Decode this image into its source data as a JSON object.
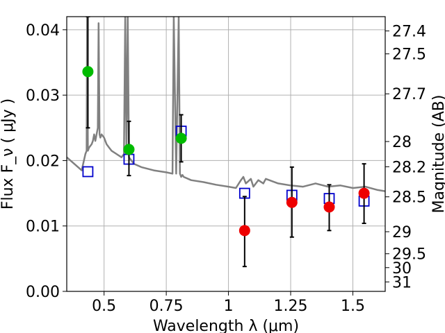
{
  "chart_data": {
    "type": "scatter",
    "xlabel": "Wavelength  λ (μm)",
    "ylabel": "Flux  F_ν  ( μJy )",
    "ylabel_right": "Magnitude (AB)",
    "xlim": [
      0.35,
      1.63
    ],
    "ylim": [
      0.0,
      0.042
    ],
    "grid": true,
    "x_ticks": [
      {
        "value": 0.5,
        "label": "0.5"
      },
      {
        "value": 0.75,
        "label": "0.75"
      },
      {
        "value": 1.0,
        "label": "1"
      },
      {
        "value": 1.25,
        "label": "1.25"
      },
      {
        "value": 1.5,
        "label": "1.5"
      }
    ],
    "y_ticks": [
      {
        "value": 0.0,
        "label": "0.00"
      },
      {
        "value": 0.01,
        "label": "0.01"
      },
      {
        "value": 0.02,
        "label": "0.02"
      },
      {
        "value": 0.03,
        "label": "0.03"
      },
      {
        "value": 0.04,
        "label": "0.04"
      }
    ],
    "mag_ticks": [
      {
        "value": 27.4,
        "label": "27.4"
      },
      {
        "value": 27.5,
        "label": "27.5"
      },
      {
        "value": 27.7,
        "label": "27.7"
      },
      {
        "value": 28.0,
        "label": "28"
      },
      {
        "value": 28.2,
        "label": "28.2"
      },
      {
        "value": 28.5,
        "label": "28.5"
      },
      {
        "value": 29.0,
        "label": "29"
      },
      {
        "value": 29.5,
        "label": "29.5"
      },
      {
        "value": 30.0,
        "label": "30"
      },
      {
        "value": 31.0,
        "label": "31"
      }
    ],
    "series": [
      {
        "kind": "line",
        "color": "#808080",
        "x": [
          0.35,
          0.38,
          0.41,
          0.425,
          0.43,
          0.432,
          0.435,
          0.44,
          0.45,
          0.455,
          0.46,
          0.465,
          0.47,
          0.475,
          0.478,
          0.482,
          0.485,
          0.49,
          0.5,
          0.51,
          0.52,
          0.53,
          0.55,
          0.57,
          0.58,
          0.585,
          0.59,
          0.595,
          0.6,
          0.62,
          0.65,
          0.7,
          0.75,
          0.775,
          0.78,
          0.79,
          0.8,
          0.805,
          0.81,
          0.815,
          0.82,
          0.85,
          0.9,
          0.95,
          1.0,
          1.03,
          1.05,
          1.06,
          1.07,
          1.09,
          1.1,
          1.12,
          1.14,
          1.15,
          1.2,
          1.25,
          1.3,
          1.35,
          1.4,
          1.45,
          1.5,
          1.55,
          1.6,
          1.63
        ],
        "y": [
          0.0205,
          0.0195,
          0.0185,
          0.021,
          0.0215,
          0.042,
          0.0215,
          0.022,
          0.0225,
          0.023,
          0.024,
          0.023,
          0.024,
          0.025,
          0.041,
          0.024,
          0.0235,
          0.024,
          0.0235,
          0.0225,
          0.022,
          0.0215,
          0.021,
          0.0205,
          0.021,
          0.042,
          0.021,
          0.042,
          0.0205,
          0.0195,
          0.019,
          0.0185,
          0.0182,
          0.018,
          0.042,
          0.018,
          0.042,
          0.018,
          0.0175,
          0.0178,
          0.0175,
          0.017,
          0.0167,
          0.0163,
          0.016,
          0.0158,
          0.017,
          0.0175,
          0.0165,
          0.0172,
          0.016,
          0.017,
          0.0165,
          0.0172,
          0.0165,
          0.0162,
          0.016,
          0.0165,
          0.016,
          0.0162,
          0.0158,
          0.016,
          0.0155,
          0.0153
        ]
      },
      {
        "kind": "squares",
        "color": "#0000cc",
        "x": [
          0.435,
          0.6,
          0.81,
          1.065,
          1.255,
          1.405,
          1.545
        ],
        "y": [
          0.0183,
          0.0202,
          0.0245,
          0.015,
          0.0147,
          0.0142,
          0.0138
        ]
      },
      {
        "kind": "points",
        "color": "#00bb00",
        "x": [
          0.435,
          0.6,
          0.81
        ],
        "y": [
          0.0336,
          0.0217,
          0.0234
        ],
        "yerr_low": [
          0.025,
          0.0177,
          0.0198
        ],
        "yerr_high": [
          0.042,
          0.026,
          0.027
        ]
      },
      {
        "kind": "points",
        "color": "#ee0000",
        "x": [
          1.065,
          1.255,
          1.405,
          1.545
        ],
        "y": [
          0.0093,
          0.0136,
          0.0129,
          0.015
        ],
        "yerr_low": [
          0.0038,
          0.0083,
          0.0093,
          0.0104
        ],
        "yerr_high": [
          0.0145,
          0.019,
          0.0163,
          0.0195
        ]
      }
    ]
  }
}
